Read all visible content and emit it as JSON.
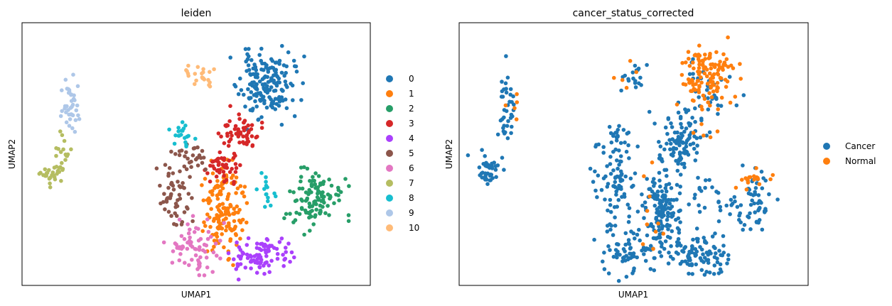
{
  "figure": {
    "background": "#ffffff"
  },
  "chart_data": [
    {
      "type": "scatter",
      "title": "leiden",
      "xlabel": "UMAP1",
      "ylabel": "UMAP2",
      "xlim": [
        0,
        10
      ],
      "ylim": [
        0,
        7
      ],
      "xticks": [],
      "yticks": [],
      "grid": false,
      "legend_position": "right",
      "marker_size": 5,
      "series": [
        {
          "name": "0",
          "color": "#1f77b4",
          "clusters": [
            {
              "cx": 7.0,
              "cy": 5.35,
              "sx": 0.38,
              "sy": 0.42,
              "n": 170,
              "seed": 11
            }
          ]
        },
        {
          "name": "1",
          "color": "#ff7f0e",
          "clusters": [
            {
              "cx": 5.8,
              "cy": 2.05,
              "sx": 0.28,
              "sy": 0.55,
              "n": 150,
              "seed": 12
            }
          ]
        },
        {
          "name": "2",
          "color": "#279e68",
          "clusters": [
            {
              "cx": 8.3,
              "cy": 2.35,
              "sx": 0.42,
              "sy": 0.36,
              "n": 110,
              "seed": 13
            }
          ]
        },
        {
          "name": "3",
          "color": "#d62728",
          "clusters": [
            {
              "cx": 6.3,
              "cy": 4.05,
              "sx": 0.27,
              "sy": 0.22,
              "n": 55,
              "seed": 14
            },
            {
              "cx": 5.75,
              "cy": 3.15,
              "sx": 0.25,
              "sy": 0.3,
              "n": 45,
              "seed": 15
            }
          ]
        },
        {
          "name": "4",
          "color": "#aa40fc",
          "clusters": [
            {
              "cx": 6.9,
              "cy": 0.8,
              "sx": 0.45,
              "sy": 0.25,
              "n": 90,
              "seed": 16
            }
          ]
        },
        {
          "name": "5",
          "color": "#8c564b",
          "clusters": [
            {
              "cx": 4.4,
              "cy": 2.45,
              "sx": 0.22,
              "sy": 0.55,
              "n": 55,
              "seed": 17
            },
            {
              "cx": 4.9,
              "cy": 3.4,
              "sx": 0.35,
              "sy": 0.2,
              "n": 25,
              "seed": 18
            }
          ]
        },
        {
          "name": "6",
          "color": "#e377c2",
          "clusters": [
            {
              "cx": 4.9,
              "cy": 1.0,
              "sx": 0.38,
              "sy": 0.35,
              "n": 70,
              "seed": 19
            }
          ]
        },
        {
          "name": "7",
          "color": "#b5bd61",
          "clusters": [
            {
              "cx": 0.8,
              "cy": 2.95,
              "sx": 0.18,
              "sy": 0.12,
              "n": 25,
              "seed": 20
            },
            {
              "cx": 1.15,
              "cy": 3.45,
              "sx": 0.1,
              "sy": 0.35,
              "n": 20,
              "seed": 21
            }
          ]
        },
        {
          "name": "8",
          "color": "#17becf",
          "clusters": [
            {
              "cx": 4.6,
              "cy": 4.05,
              "sx": 0.12,
              "sy": 0.15,
              "n": 20,
              "seed": 22
            },
            {
              "cx": 6.95,
              "cy": 2.55,
              "sx": 0.15,
              "sy": 0.3,
              "n": 15,
              "seed": 23
            }
          ]
        },
        {
          "name": "9",
          "color": "#aec7e8",
          "clusters": [
            {
              "cx": 1.4,
              "cy": 4.75,
              "sx": 0.14,
              "sy": 0.42,
              "n": 40,
              "seed": 24
            }
          ]
        },
        {
          "name": "10",
          "color": "#ffbb78",
          "clusters": [
            {
              "cx": 5.05,
              "cy": 5.55,
              "sx": 0.25,
              "sy": 0.17,
              "n": 22,
              "seed": 25
            }
          ]
        }
      ]
    },
    {
      "type": "scatter",
      "title": "cancer_status_corrected",
      "xlabel": "UMAP1",
      "ylabel": "UMAP2",
      "xlim": [
        0,
        10
      ],
      "ylim": [
        0,
        7
      ],
      "xticks": [],
      "yticks": [],
      "grid": false,
      "legend_position": "right",
      "marker_size": 5,
      "series": [
        {
          "name": "Cancer",
          "color": "#1f77b4",
          "clusters": [
            {
              "cx": 7.0,
              "cy": 5.1,
              "sx": 0.4,
              "sy": 0.45,
              "n": 45,
              "seed": 31
            },
            {
              "cx": 5.8,
              "cy": 2.0,
              "sx": 0.3,
              "sy": 0.55,
              "n": 145,
              "seed": 32
            },
            {
              "cx": 8.3,
              "cy": 2.2,
              "sx": 0.42,
              "sy": 0.38,
              "n": 70,
              "seed": 33
            },
            {
              "cx": 6.3,
              "cy": 3.8,
              "sx": 0.35,
              "sy": 0.45,
              "n": 95,
              "seed": 34
            },
            {
              "cx": 6.9,
              "cy": 0.8,
              "sx": 0.45,
              "sy": 0.25,
              "n": 85,
              "seed": 35
            },
            {
              "cx": 4.5,
              "cy": 2.7,
              "sx": 0.3,
              "sy": 0.6,
              "n": 78,
              "seed": 36
            },
            {
              "cx": 4.9,
              "cy": 1.0,
              "sx": 0.38,
              "sy": 0.35,
              "n": 68,
              "seed": 37
            },
            {
              "cx": 0.85,
              "cy": 3.05,
              "sx": 0.18,
              "sy": 0.2,
              "n": 42,
              "seed": 38
            },
            {
              "cx": 1.35,
              "cy": 4.6,
              "sx": 0.14,
              "sy": 0.5,
              "n": 38,
              "seed": 39
            },
            {
              "cx": 4.95,
              "cy": 5.6,
              "sx": 0.25,
              "sy": 0.16,
              "n": 18,
              "seed": 40
            },
            {
              "cx": 4.6,
              "cy": 4.0,
              "sx": 0.15,
              "sy": 0.15,
              "n": 18,
              "seed": 41
            },
            {
              "cx": 6.95,
              "cy": 2.5,
              "sx": 0.2,
              "sy": 0.3,
              "n": 15,
              "seed": 42
            }
          ]
        },
        {
          "name": "Normal",
          "color": "#ff7f0e",
          "clusters": [
            {
              "cx": 7.05,
              "cy": 5.6,
              "sx": 0.35,
              "sy": 0.38,
              "n": 125,
              "seed": 51
            },
            {
              "cx": 8.55,
              "cy": 2.85,
              "sx": 0.25,
              "sy": 0.15,
              "n": 18,
              "seed": 52
            },
            {
              "cx": 1.55,
              "cy": 4.75,
              "sx": 0.1,
              "sy": 0.15,
              "n": 5,
              "seed": 53
            },
            {
              "cx": 5.6,
              "cy": 2.0,
              "sx": 0.4,
              "sy": 0.6,
              "n": 10,
              "seed": 54
            },
            {
              "cx": 6.5,
              "cy": 4.3,
              "sx": 0.5,
              "sy": 0.4,
              "n": 8,
              "seed": 55
            },
            {
              "cx": 5.0,
              "cy": 5.6,
              "sx": 0.3,
              "sy": 0.3,
              "n": 5,
              "seed": 56
            }
          ]
        }
      ]
    }
  ]
}
